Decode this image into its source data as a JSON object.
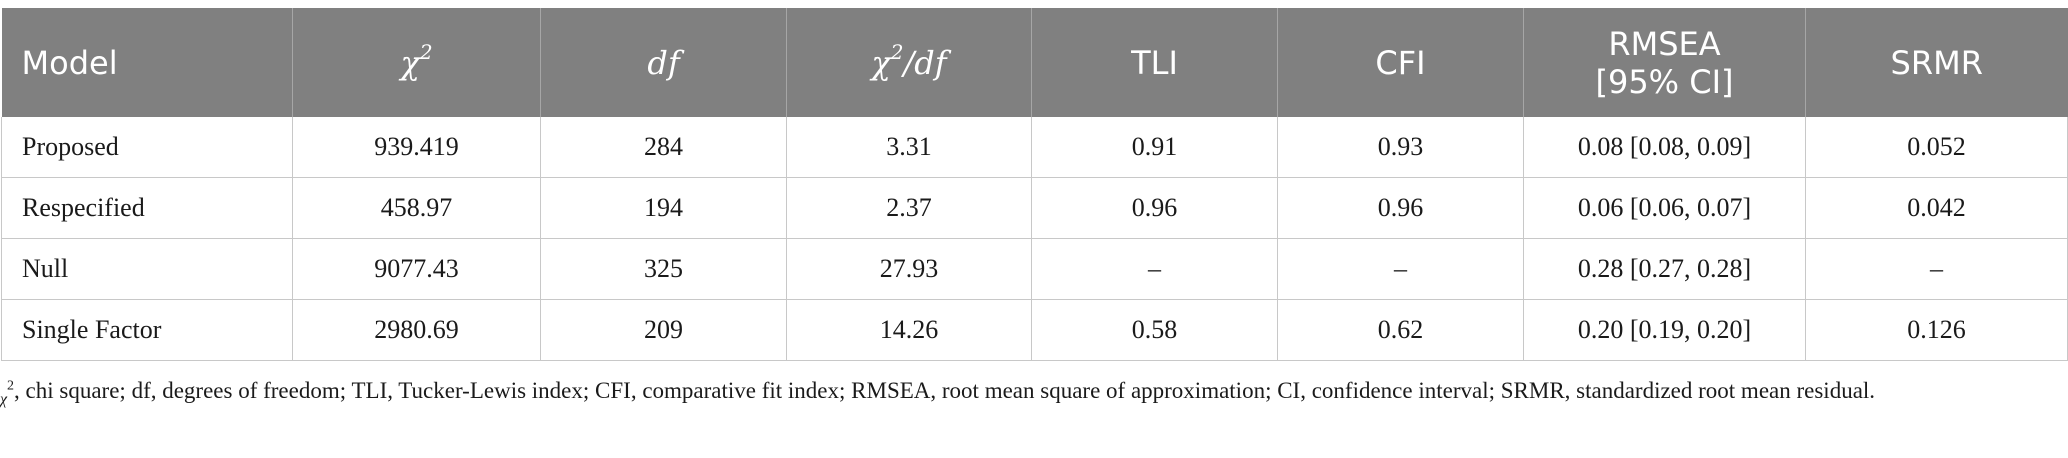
{
  "table": {
    "columns": [
      {
        "base": "Model",
        "style": "plain",
        "sup": "",
        "rest": "",
        "line2": ""
      },
      {
        "base": "χ",
        "style": "italic",
        "sup": "2",
        "rest": "",
        "line2": ""
      },
      {
        "base": "df",
        "style": "italic",
        "sup": "",
        "rest": "",
        "line2": ""
      },
      {
        "base": "χ",
        "style": "italic",
        "sup": "2",
        "rest": "/df",
        "line2": ""
      },
      {
        "base": "TLI",
        "style": "plain",
        "sup": "",
        "rest": "",
        "line2": ""
      },
      {
        "base": "CFI",
        "style": "plain",
        "sup": "",
        "rest": "",
        "line2": ""
      },
      {
        "base": "RMSEA",
        "style": "plain",
        "sup": "",
        "rest": "",
        "line2": "[95% CI]"
      },
      {
        "base": "SRMR",
        "style": "plain",
        "sup": "",
        "rest": "",
        "line2": ""
      }
    ],
    "rows": [
      [
        "Proposed",
        "939.419",
        "284",
        "3.31",
        "0.91",
        "0.93",
        "0.08 [0.08, 0.09]",
        "0.052"
      ],
      [
        "Respecified",
        "458.97",
        "194",
        "2.37",
        "0.96",
        "0.96",
        "0.06 [0.06, 0.07]",
        "0.042"
      ],
      [
        "Null",
        "9077.43",
        "325",
        "27.93",
        "–",
        "–",
        "0.28 [0.27, 0.28]",
        "–"
      ],
      [
        "Single Factor",
        "2980.69",
        "209",
        "14.26",
        "0.58",
        "0.62",
        "0.20 [0.19, 0.20]",
        "0.126"
      ]
    ]
  },
  "footnote": {
    "symbol": "χ",
    "sup": "2",
    "text": ", chi square; df, degrees of freedom; TLI, Tucker-Lewis index; CFI, comparative fit index; RMSEA, root mean square of approximation; CI, confidence interval; SRMR, standardized root mean residual."
  },
  "colors": {
    "header_bg": "#808080",
    "header_text": "#ffffff",
    "grid_line": "#c8c8c8",
    "body_text": "#1a1a1a"
  }
}
